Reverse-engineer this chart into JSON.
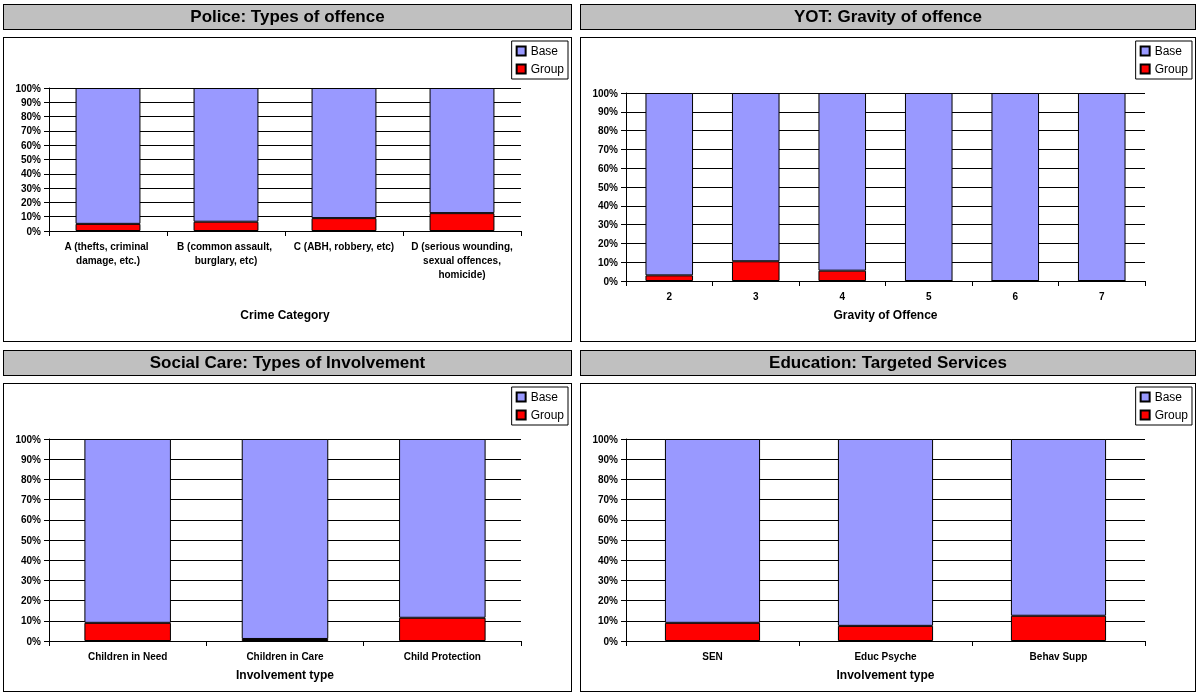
{
  "chart_data": [
    {
      "type": "bar",
      "title": "Police: Types of offence",
      "xlabel": "Crime Category",
      "categories": [
        "A (thefts, criminal damage, etc.)",
        "B (common assault, burglary, etc)",
        "C (ABH, robbery, etc)",
        "D (serious wounding, sexual offences, homicide)"
      ],
      "stacked": true,
      "legend": "top right",
      "grid": "y",
      "ylim": [
        0,
        100
      ],
      "yticks": [
        {
          "value": 0,
          "label": "0%"
        },
        {
          "value": 10,
          "label": "10%"
        },
        {
          "value": 20,
          "label": "20%"
        },
        {
          "value": 30,
          "label": "30%"
        },
        {
          "value": 40,
          "label": "40%"
        },
        {
          "value": 50,
          "label": "50%"
        },
        {
          "value": 60,
          "label": "60%"
        },
        {
          "value": 70,
          "label": "70%"
        },
        {
          "value": 80,
          "label": "80%"
        },
        {
          "value": 90,
          "label": "90%"
        },
        {
          "value": 100,
          "label": "100%"
        }
      ],
      "series": [
        {
          "name": "Group",
          "color": "#ff0000",
          "values": [
            5,
            6.5,
            9,
            12.5
          ]
        },
        {
          "name": "Base",
          "color": "#9999ff",
          "values": [
            95,
            93.5,
            91,
            87.5
          ]
        }
      ]
    },
    {
      "type": "bar",
      "title": "YOT: Gravity of offence",
      "xlabel": "Gravity of Offence",
      "categories": [
        "2",
        "3",
        "4",
        "5",
        "6",
        "7"
      ],
      "stacked": true,
      "legend": "top right",
      "grid": "y",
      "ylim": [
        0,
        100
      ],
      "yticks": [
        {
          "value": 0,
          "label": "0%"
        },
        {
          "value": 10,
          "label": "10%"
        },
        {
          "value": 20,
          "label": "20%"
        },
        {
          "value": 30,
          "label": "30%"
        },
        {
          "value": 40,
          "label": "40%"
        },
        {
          "value": 50,
          "label": "50%"
        },
        {
          "value": 60,
          "label": "60%"
        },
        {
          "value": 70,
          "label": "70%"
        },
        {
          "value": 80,
          "label": "80%"
        },
        {
          "value": 90,
          "label": "90%"
        },
        {
          "value": 100,
          "label": "100%"
        }
      ],
      "series": [
        {
          "name": "Group",
          "color": "#ff0000",
          "values": [
            3,
            10.5,
            5.5,
            0,
            0,
            0
          ]
        },
        {
          "name": "Base",
          "color": "#9999ff",
          "values": [
            97,
            89.5,
            94.5,
            100,
            100,
            100
          ]
        }
      ]
    },
    {
      "type": "bar",
      "title": "Social Care: Types of Involvement",
      "xlabel": "Involvement type",
      "categories": [
        "Children in Need",
        "Children in Care",
        "Child Protection"
      ],
      "stacked": true,
      "legend": "top right",
      "grid": "y",
      "ylim": [
        0,
        100
      ],
      "yticks": [
        {
          "value": 0,
          "label": "0%"
        },
        {
          "value": 10,
          "label": "10%"
        },
        {
          "value": 20,
          "label": "20%"
        },
        {
          "value": 30,
          "label": "30%"
        },
        {
          "value": 40,
          "label": "40%"
        },
        {
          "value": 50,
          "label": "50%"
        },
        {
          "value": 60,
          "label": "60%"
        },
        {
          "value": 70,
          "label": "70%"
        },
        {
          "value": 80,
          "label": "80%"
        },
        {
          "value": 90,
          "label": "90%"
        },
        {
          "value": 100,
          "label": "100%"
        }
      ],
      "series": [
        {
          "name": "Group",
          "color": "#ff0000",
          "values": [
            9,
            1,
            11.5
          ]
        },
        {
          "name": "Base",
          "color": "#9999ff",
          "values": [
            91,
            99,
            88.5
          ]
        }
      ]
    },
    {
      "type": "bar",
      "title": "Education: Targeted Services",
      "xlabel": "Involvement type",
      "categories": [
        "SEN",
        "Educ Psyche",
        "Behav Supp"
      ],
      "stacked": true,
      "legend": "top right",
      "grid": "y",
      "ylim": [
        0,
        100
      ],
      "yticks": [
        {
          "value": 0,
          "label": "0%"
        },
        {
          "value": 10,
          "label": "10%"
        },
        {
          "value": 20,
          "label": "20%"
        },
        {
          "value": 30,
          "label": "30%"
        },
        {
          "value": 40,
          "label": "40%"
        },
        {
          "value": 50,
          "label": "50%"
        },
        {
          "value": 60,
          "label": "60%"
        },
        {
          "value": 70,
          "label": "70%"
        },
        {
          "value": 80,
          "label": "80%"
        },
        {
          "value": 90,
          "label": "90%"
        },
        {
          "value": 100,
          "label": "100%"
        }
      ],
      "series": [
        {
          "name": "Group",
          "color": "#ff0000",
          "values": [
            9,
            7.5,
            12.5
          ]
        },
        {
          "name": "Base",
          "color": "#9999ff",
          "values": [
            91,
            92.5,
            87.5
          ]
        }
      ]
    }
  ]
}
